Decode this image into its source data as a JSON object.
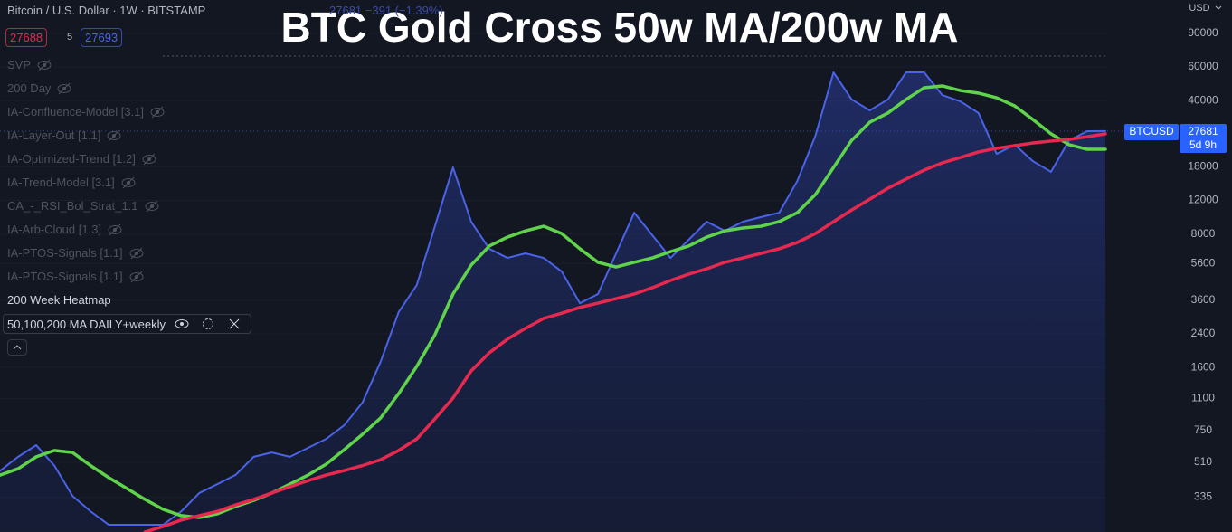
{
  "header": {
    "symbol": "Bitcoin / U.S. Dollar · 1W · BITSTAMP",
    "quote": "27681 −391 (−1.39%)",
    "bid": "27688",
    "spread": "5",
    "ask": "27693"
  },
  "indicators": [
    "SVP",
    "200 Day",
    "IA-Confluence-Model [3.1]",
    "IA-Layer-Out [1.1]",
    "IA-Optimized-Trend [1.2]",
    "IA-Trend-Model [3.1]",
    "CA_-_RSI_Bol_Strat_1.1",
    "IA-Arb-Cloud [1.3]",
    "IA-PTOS-Signals [1.1]",
    "IA-PTOS-Signals [1.1]",
    "200 Week Heatmap"
  ],
  "active_indicator": "50,100,200 MA DAILY+weekly",
  "currency": "USD",
  "price_label": {
    "symbol": "BTCUSD",
    "price": "27681",
    "countdown": "5d 9h"
  },
  "chart_data": {
    "type": "line",
    "title": "BTC Gold Cross 50w MA/200w MA",
    "log_scale": true,
    "ylim": [
      220,
      134600
    ],
    "yticks": [
      90000,
      60000,
      40000,
      18000,
      12000,
      8000,
      5600,
      3600,
      2400,
      1600,
      1100,
      750,
      510,
      335
    ],
    "series": [
      {
        "name": "BTCUSD",
        "color": "#4a63e8",
        "values": [
          460,
          545,
          627,
          490,
          340,
          282,
          240,
          240,
          240,
          240,
          282,
          352,
          392,
          438,
          545,
          574,
          545,
          607,
          676,
          798,
          1047,
          1710,
          3120,
          4325,
          8790,
          17870,
          9290,
          6700,
          6000,
          6340,
          6000,
          5093,
          3475,
          3880,
          6340,
          10350,
          7890,
          6000,
          7460,
          9290,
          8310,
          9290,
          9820,
          10350,
          15170,
          26180,
          56200,
          40550,
          35560,
          40550,
          56200,
          56200,
          42760,
          39630,
          34430,
          21040,
          23500,
          19280,
          16940,
          24770,
          27670,
          27681
        ]
      },
      {
        "name": "50w MA",
        "color": "#5fd44a",
        "values": [
          437,
          472,
          545,
          588,
          574,
          490,
          424,
          372,
          326,
          289,
          268,
          262,
          274,
          299,
          322,
          352,
          392,
          437,
          499,
          594,
          714,
          869,
          1167,
          1622,
          2372,
          3880,
          5500,
          6920,
          7710,
          8310,
          8790,
          8050,
          6700,
          5690,
          5380,
          5690,
          6000,
          6470,
          6920,
          7710,
          8310,
          8610,
          8790,
          9290,
          10350,
          12880,
          17870,
          24780,
          30830,
          34430,
          40550,
          46700,
          47750,
          45160,
          43750,
          41400,
          37500,
          31840,
          26790,
          23500,
          22230,
          22230
        ]
      },
      {
        "name": "200w MA",
        "color": "#e8294f",
        "values": [
          null,
          null,
          null,
          null,
          null,
          null,
          null,
          null,
          220,
          235,
          254,
          268,
          282,
          305,
          326,
          352,
          380,
          409,
          437,
          462,
          490,
          526,
          588,
          676,
          861,
          1107,
          1535,
          1910,
          2250,
          2565,
          2890,
          3080,
          3300,
          3475,
          3673,
          3880,
          4190,
          4570,
          4930,
          5260,
          5690,
          6000,
          6340,
          6700,
          7230,
          8050,
          9290,
          10690,
          12190,
          13900,
          15520,
          17300,
          18880,
          20140,
          21530,
          22490,
          23230,
          23990,
          24550,
          25060,
          25880,
          26790
        ]
      }
    ]
  }
}
